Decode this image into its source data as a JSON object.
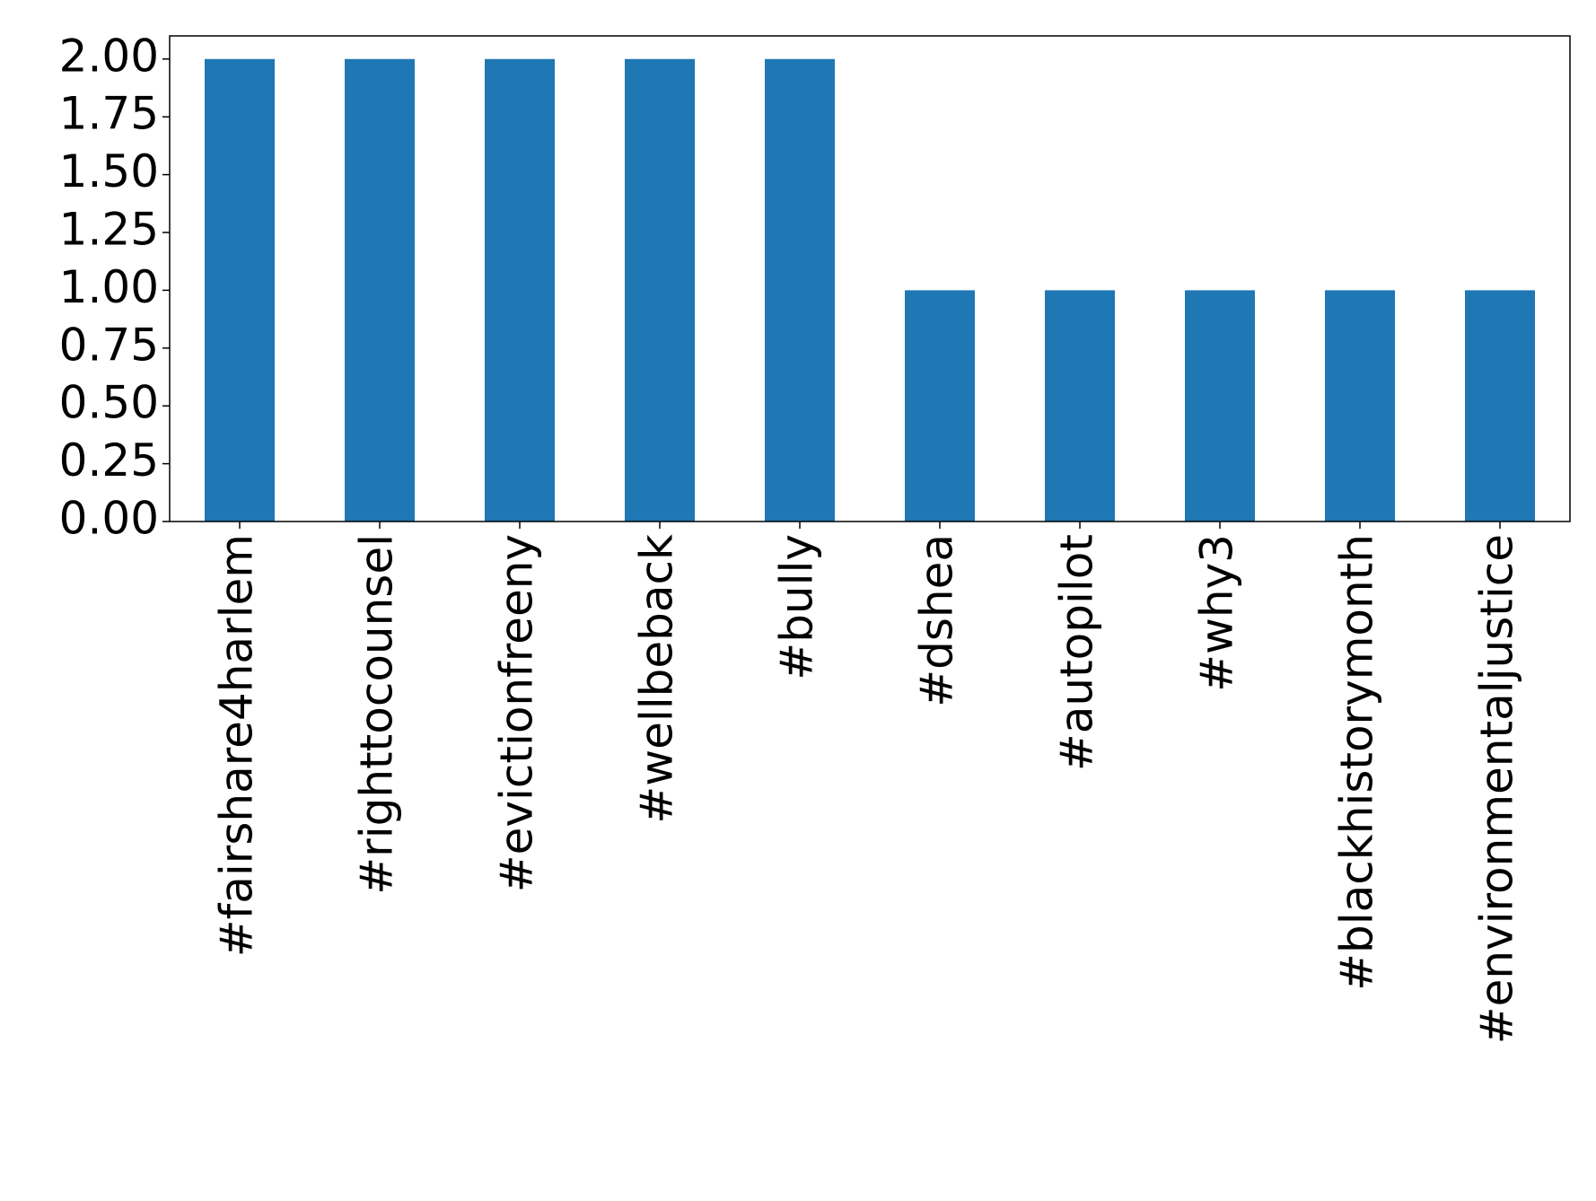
{
  "chart_data": {
    "type": "bar",
    "categories": [
      "#fairshare4harlem",
      "#righttocounsel",
      "#evictionfreeny",
      "#wellbeback",
      "#bully",
      "#dshea",
      "#autopilot",
      "#why3",
      "#blackhistorymonth",
      "#environmentaljustice"
    ],
    "values": [
      2,
      2,
      2,
      2,
      2,
      1,
      1,
      1,
      1,
      1
    ],
    "color": "#1f77b4",
    "ylim": [
      0,
      2.1
    ],
    "yticks": [
      {
        "value": 0,
        "label": "0.00"
      },
      {
        "value": 0.25,
        "label": "0.25"
      },
      {
        "value": 0.5,
        "label": "0.50"
      },
      {
        "value": 0.75,
        "label": "0.75"
      },
      {
        "value": 1,
        "label": "1.00"
      },
      {
        "value": 1.25,
        "label": "1.25"
      },
      {
        "value": 1.5,
        "label": "1.50"
      },
      {
        "value": 1.75,
        "label": "1.75"
      },
      {
        "value": 2,
        "label": "2.00"
      }
    ],
    "grid": false
  }
}
